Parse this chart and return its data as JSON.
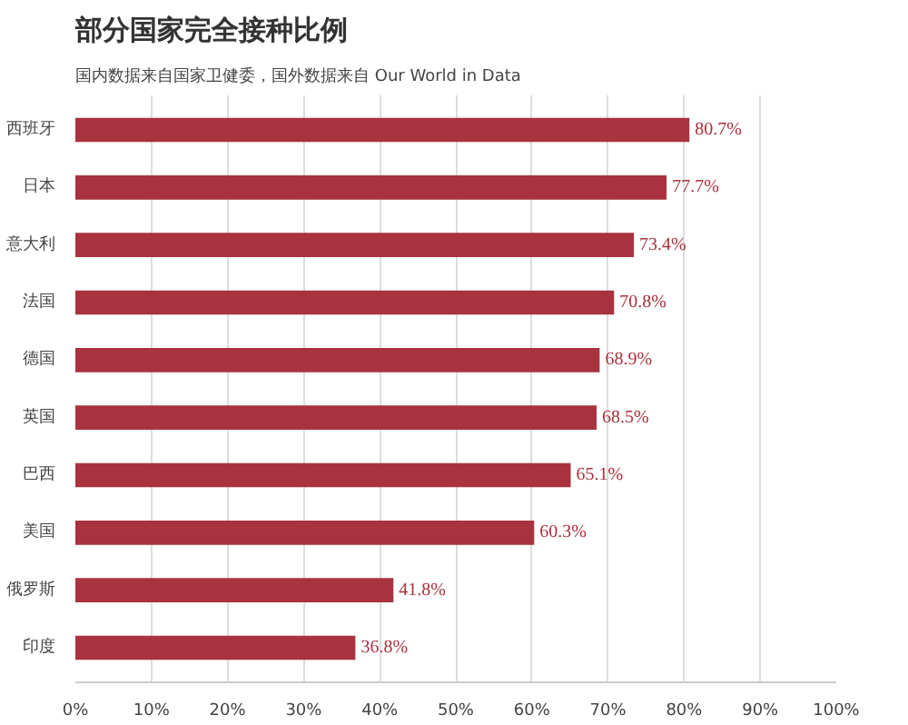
{
  "chart_data": {
    "type": "bar",
    "orientation": "horizontal",
    "title": "部分国家完全接种比例",
    "subtitle": "国内数据来自国家卫健委，国外数据来自 Our World in Data",
    "categories": [
      "西班牙",
      "日本",
      "意大利",
      "法国",
      "德国",
      "英国",
      "巴西",
      "美国",
      "俄罗斯",
      "印度"
    ],
    "values": [
      80.7,
      77.7,
      73.4,
      70.8,
      68.9,
      68.5,
      65.1,
      60.3,
      41.8,
      36.8
    ],
    "value_labels": [
      "80.7%",
      "77.7%",
      "73.4%",
      "70.8%",
      "68.9%",
      "68.5%",
      "65.1%",
      "60.3%",
      "41.8%",
      "36.8%"
    ],
    "color": "#a8323e",
    "xlim": [
      0,
      100
    ],
    "xticks": [
      {
        "value": 0,
        "label": "0%"
      },
      {
        "value": 10,
        "label": "10%"
      },
      {
        "value": 20,
        "label": "20%"
      },
      {
        "value": 30,
        "label": "30%"
      },
      {
        "value": 40,
        "label": "40%"
      },
      {
        "value": 50,
        "label": "50%"
      },
      {
        "value": 60,
        "label": "60%"
      },
      {
        "value": 70,
        "label": "70%"
      },
      {
        "value": 80,
        "label": "80%"
      },
      {
        "value": 90,
        "label": "90%"
      },
      {
        "value": 100,
        "label": "100%"
      }
    ],
    "grid": "x"
  }
}
